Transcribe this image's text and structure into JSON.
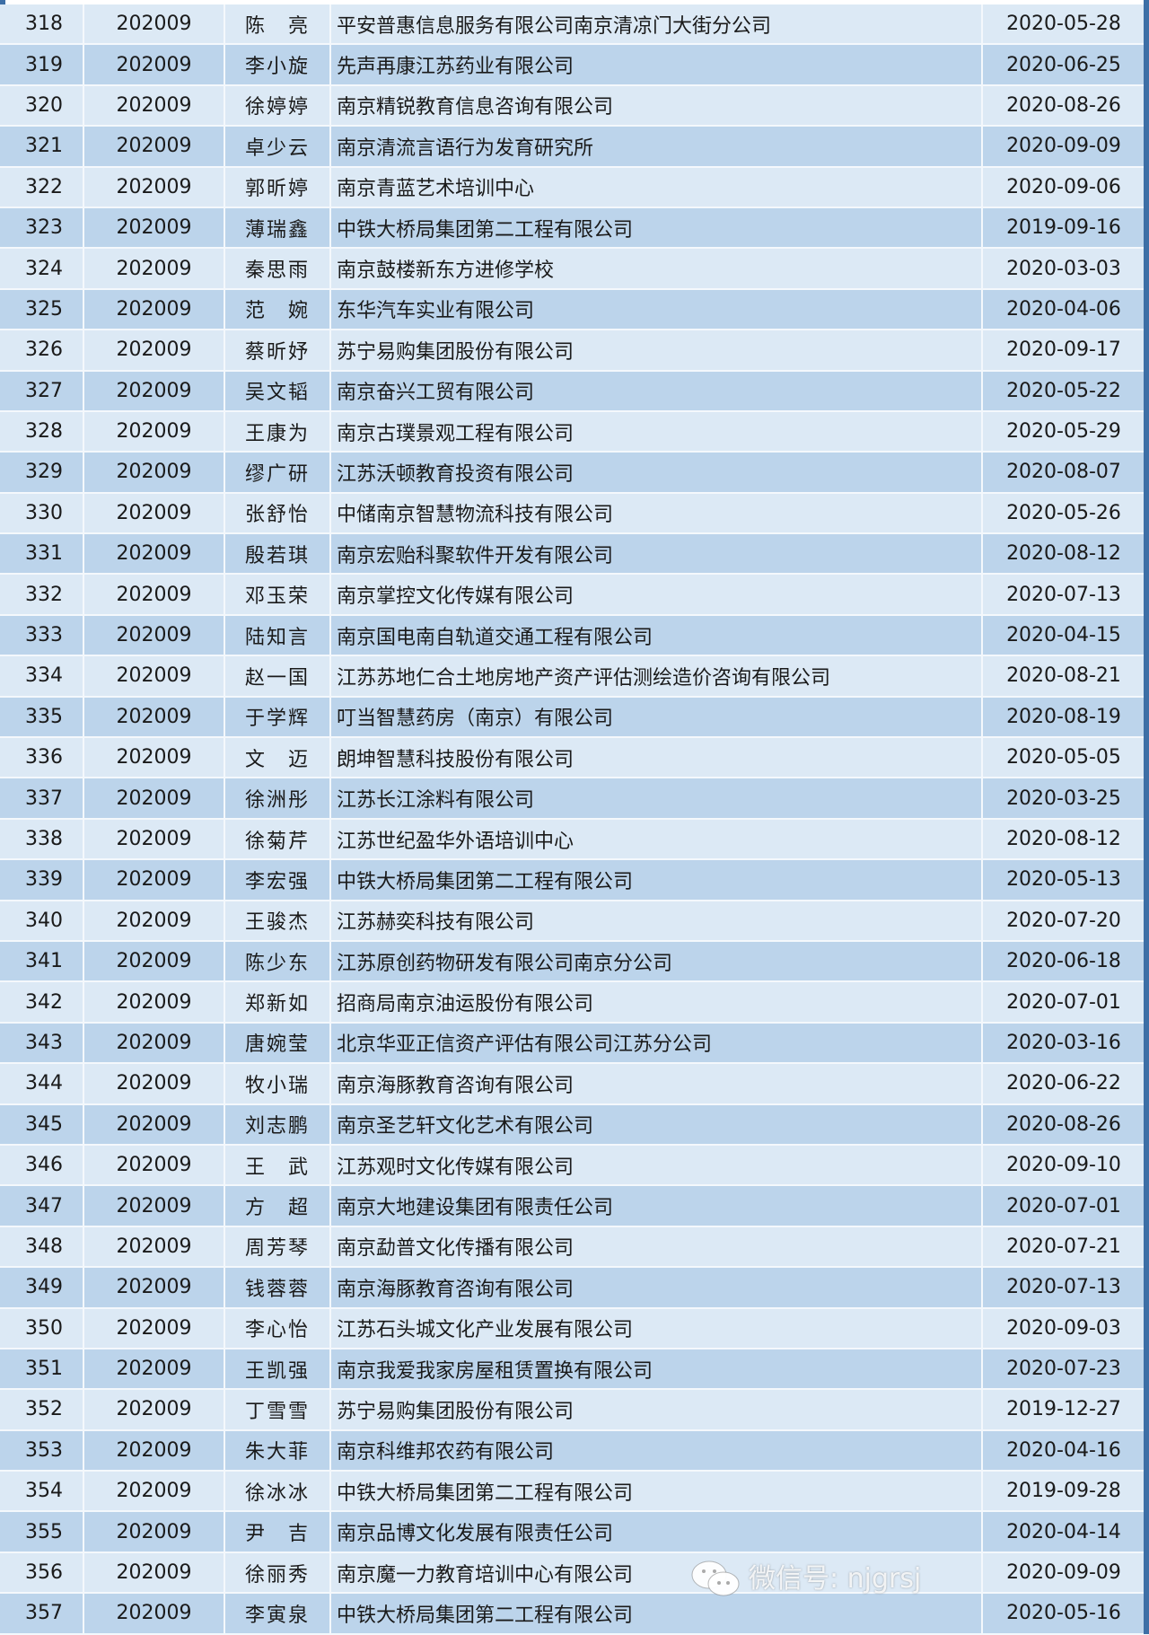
{
  "colors": {
    "row_light": "#dce9f5",
    "row_dark": "#bcd4eb",
    "border_accent": "#3d6fa6"
  },
  "rows": [
    [
      "318",
      "202009",
      "陈　亮",
      "平安普惠信息服务有限公司南京清凉门大街分公司",
      "2020-05-28"
    ],
    [
      "319",
      "202009",
      "李小旋",
      "先声再康江苏药业有限公司",
      "2020-06-25"
    ],
    [
      "320",
      "202009",
      "徐婷婷",
      "南京精锐教育信息咨询有限公司",
      "2020-08-26"
    ],
    [
      "321",
      "202009",
      "卓少云",
      "南京清流言语行为发育研究所",
      "2020-09-09"
    ],
    [
      "322",
      "202009",
      "郭昕婷",
      "南京青蓝艺术培训中心",
      "2020-09-06"
    ],
    [
      "323",
      "202009",
      "薄瑞鑫",
      "中铁大桥局集团第二工程有限公司",
      "2019-09-16"
    ],
    [
      "324",
      "202009",
      "秦思雨",
      "南京鼓楼新东方进修学校",
      "2020-03-03"
    ],
    [
      "325",
      "202009",
      "范　婉",
      "东华汽车实业有限公司",
      "2020-04-06"
    ],
    [
      "326",
      "202009",
      "蔡昕妤",
      "苏宁易购集团股份有限公司",
      "2020-09-17"
    ],
    [
      "327",
      "202009",
      "吴文韬",
      "南京奋兴工贸有限公司",
      "2020-05-22"
    ],
    [
      "328",
      "202009",
      "王康为",
      "南京古璞景观工程有限公司",
      "2020-05-29"
    ],
    [
      "329",
      "202009",
      "缪广研",
      "江苏沃顿教育投资有限公司",
      "2020-08-07"
    ],
    [
      "330",
      "202009",
      "张舒怡",
      "中储南京智慧物流科技有限公司",
      "2020-05-26"
    ],
    [
      "331",
      "202009",
      "殷若琪",
      "南京宏贻科聚软件开发有限公司",
      "2020-08-12"
    ],
    [
      "332",
      "202009",
      "邓玉荣",
      "南京掌控文化传媒有限公司",
      "2020-07-13"
    ],
    [
      "333",
      "202009",
      "陆知言",
      "南京国电南自轨道交通工程有限公司",
      "2020-04-15"
    ],
    [
      "334",
      "202009",
      "赵一国",
      "江苏苏地仁合土地房地产资产评估测绘造价咨询有限公司",
      "2020-08-21"
    ],
    [
      "335",
      "202009",
      "于学辉",
      "叮当智慧药房（南京）有限公司",
      "2020-08-19"
    ],
    [
      "336",
      "202009",
      "文　迈",
      "朗坤智慧科技股份有限公司",
      "2020-05-05"
    ],
    [
      "337",
      "202009",
      "徐洲彤",
      "江苏长江涂料有限公司",
      "2020-03-25"
    ],
    [
      "338",
      "202009",
      "徐菊芹",
      "江苏世纪盈华外语培训中心",
      "2020-08-12"
    ],
    [
      "339",
      "202009",
      "李宏强",
      "中铁大桥局集团第二工程有限公司",
      "2020-05-13"
    ],
    [
      "340",
      "202009",
      "王骏杰",
      "江苏赫奕科技有限公司",
      "2020-07-20"
    ],
    [
      "341",
      "202009",
      "陈少东",
      "江苏原创药物研发有限公司南京分公司",
      "2020-06-18"
    ],
    [
      "342",
      "202009",
      "郑新如",
      "招商局南京油运股份有限公司",
      "2020-07-01"
    ],
    [
      "343",
      "202009",
      "唐婉莹",
      "北京华亚正信资产评估有限公司江苏分公司",
      "2020-03-16"
    ],
    [
      "344",
      "202009",
      "牧小瑞",
      "南京海豚教育咨询有限公司",
      "2020-06-22"
    ],
    [
      "345",
      "202009",
      "刘志鹏",
      "南京圣艺轩文化艺术有限公司",
      "2020-08-26"
    ],
    [
      "346",
      "202009",
      "王　武",
      "江苏观时文化传媒有限公司",
      "2020-09-10"
    ],
    [
      "347",
      "202009",
      "方　超",
      "南京大地建设集团有限责任公司",
      "2020-07-01"
    ],
    [
      "348",
      "202009",
      "周芳琴",
      "南京勐普文化传播有限公司",
      "2020-07-21"
    ],
    [
      "349",
      "202009",
      "钱蓉蓉",
      "南京海豚教育咨询有限公司",
      "2020-07-13"
    ],
    [
      "350",
      "202009",
      "李心怡",
      "江苏石头城文化产业发展有限公司",
      "2020-09-03"
    ],
    [
      "351",
      "202009",
      "王凯强",
      "南京我爱我家房屋租赁置换有限公司",
      "2020-07-23"
    ],
    [
      "352",
      "202009",
      "丁雪雪",
      "苏宁易购集团股份有限公司",
      "2019-12-27"
    ],
    [
      "353",
      "202009",
      "朱大菲",
      "南京科维邦农药有限公司",
      "2020-04-16"
    ],
    [
      "354",
      "202009",
      "徐冰冰",
      "中铁大桥局集团第二工程有限公司",
      "2019-09-28"
    ],
    [
      "355",
      "202009",
      "尹　吉",
      "南京品博文化发展有限责任公司",
      "2020-04-14"
    ],
    [
      "356",
      "202009",
      "徐丽秀",
      "南京魔一力教育培训中心有限公司",
      "2020-09-09"
    ],
    [
      "357",
      "202009",
      "李寅泉",
      "中铁大桥局集团第二工程有限公司",
      "2020-05-16"
    ]
  ],
  "watermark": {
    "icon": "wechat-icon",
    "text": "微信号: njgrsj"
  }
}
